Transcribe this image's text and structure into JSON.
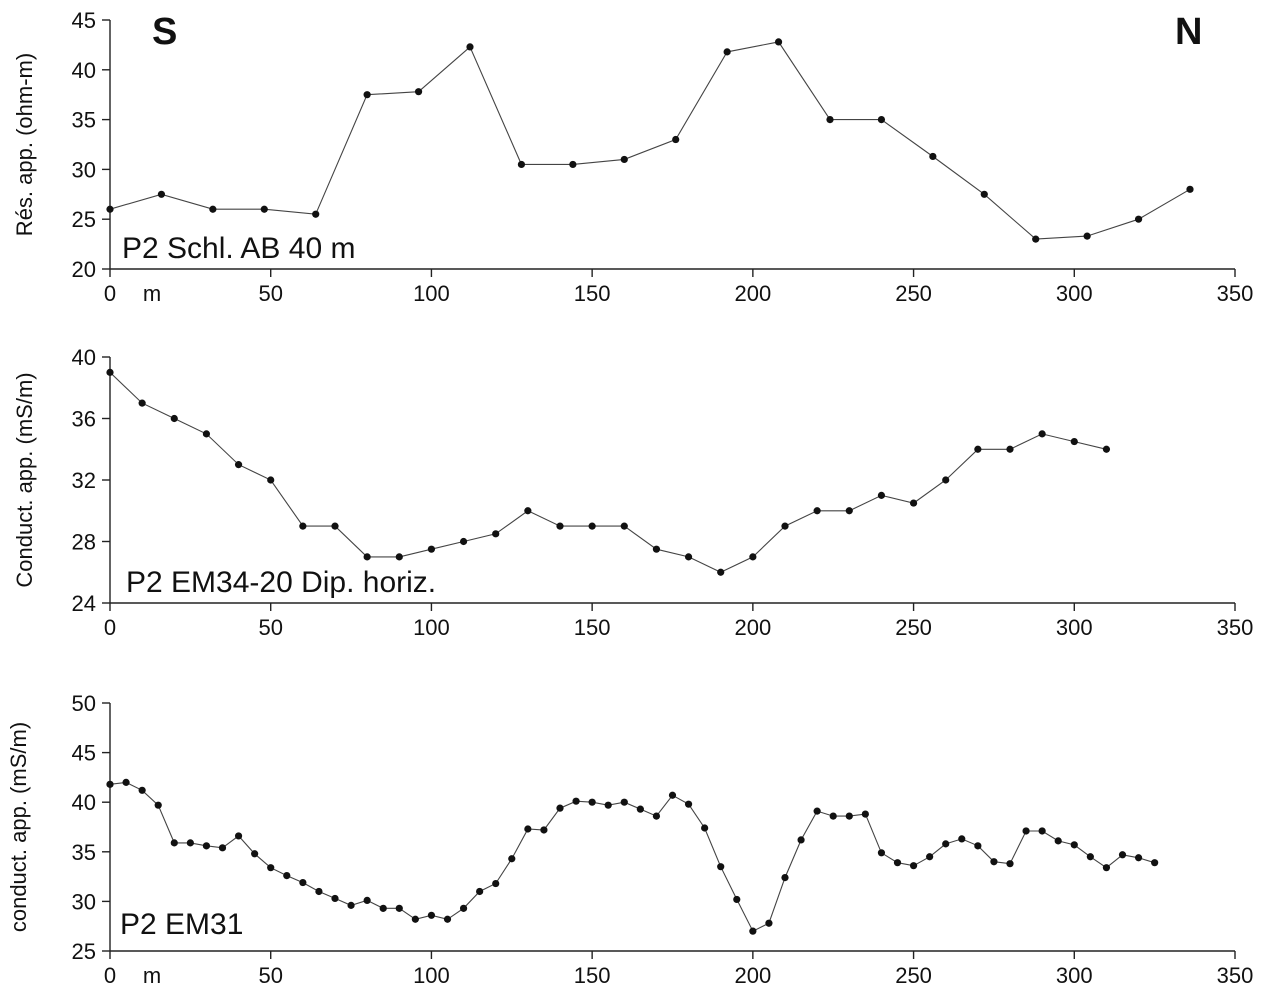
{
  "direction_labels": {
    "left": "S",
    "right": "N"
  },
  "chart_data": [
    {
      "type": "line",
      "title": "",
      "panel_label": "P2 Schl. AB 40 m",
      "xlabel": "",
      "ylabel": "Rés. app. (ohm-m)",
      "x_unit_label": "m",
      "xlim": [
        0,
        350
      ],
      "ylim": [
        20,
        45
      ],
      "xticks": [
        0,
        50,
        100,
        150,
        200,
        250,
        300,
        350
      ],
      "yticks": [
        20,
        25,
        30,
        35,
        40,
        45
      ],
      "grid": false,
      "series": [
        {
          "x": [
            0,
            16,
            32,
            48,
            64,
            80,
            96,
            112,
            128,
            144,
            160,
            176,
            192,
            208,
            224,
            240,
            256,
            272,
            288,
            304,
            320,
            336
          ],
          "y": [
            26,
            27.5,
            26,
            26,
            25.5,
            37.5,
            37.8,
            42.3,
            30.5,
            30.5,
            31,
            33,
            41.8,
            42.8,
            35,
            35,
            31.3,
            27.5,
            23,
            23.3,
            25,
            28
          ]
        }
      ]
    },
    {
      "type": "line",
      "title": "",
      "panel_label": "P2 EM34-20 Dip. horiz.",
      "xlabel": "",
      "ylabel": "Conduct. app. (mS/m)",
      "x_unit_label": "",
      "xlim": [
        0,
        350
      ],
      "ylim": [
        24,
        40
      ],
      "xticks": [
        0,
        50,
        100,
        150,
        200,
        250,
        300,
        350
      ],
      "yticks": [
        24,
        28,
        32,
        36,
        40
      ],
      "grid": false,
      "series": [
        {
          "x": [
            0,
            10,
            20,
            30,
            40,
            50,
            60,
            70,
            80,
            90,
            100,
            110,
            120,
            130,
            140,
            150,
            160,
            170,
            180,
            190,
            200,
            210,
            220,
            230,
            240,
            250,
            260,
            270,
            280,
            290,
            300,
            310
          ],
          "y": [
            39,
            37,
            36,
            35,
            33,
            32,
            29,
            29,
            27,
            27,
            27.5,
            28,
            28.5,
            30,
            29,
            29,
            29,
            27.5,
            27,
            26,
            27,
            29,
            30,
            30,
            31,
            30.5,
            32,
            34,
            34,
            35,
            34.5,
            34
          ]
        }
      ]
    },
    {
      "type": "line",
      "title": "",
      "panel_label": "P2 EM31",
      "xlabel": "",
      "ylabel": "conduct. app. (mS/m)",
      "x_unit_label": "m",
      "xlim": [
        0,
        350
      ],
      "ylim": [
        25,
        50
      ],
      "xticks": [
        0,
        50,
        100,
        150,
        200,
        250,
        300,
        350
      ],
      "yticks": [
        25,
        30,
        35,
        40,
        45,
        50
      ],
      "grid": false,
      "series": [
        {
          "x": [
            0,
            5,
            10,
            15,
            20,
            25,
            30,
            35,
            40,
            45,
            50,
            55,
            60,
            65,
            70,
            75,
            80,
            85,
            90,
            95,
            100,
            105,
            110,
            115,
            120,
            125,
            130,
            135,
            140,
            145,
            150,
            155,
            160,
            165,
            170,
            175,
            180,
            185,
            190,
            195,
            200,
            205,
            210,
            215,
            220,
            225,
            230,
            235,
            240,
            245,
            250,
            255,
            260,
            265,
            270,
            275,
            280,
            285,
            290,
            295,
            300,
            305,
            310,
            315,
            320,
            325
          ],
          "y": [
            41.8,
            42,
            41.2,
            39.7,
            35.9,
            35.9,
            35.6,
            35.4,
            36.6,
            34.8,
            33.4,
            32.6,
            31.9,
            31,
            30.3,
            29.6,
            30.1,
            29.3,
            29.3,
            28.2,
            28.6,
            28.2,
            29.3,
            31,
            31.8,
            34.3,
            37.3,
            37.2,
            39.4,
            40.1,
            40,
            39.7,
            40,
            39.3,
            38.6,
            40.7,
            39.8,
            37.4,
            33.5,
            30.2,
            27,
            27.8,
            32.4,
            36.2,
            39.1,
            38.6,
            38.6,
            38.8,
            34.9,
            33.9,
            33.6,
            34.5,
            35.8,
            36.3,
            35.6,
            34,
            33.8,
            37.1,
            37.1,
            36.1,
            35.7,
            34.5,
            33.4,
            34.7,
            34.4,
            33.9
          ]
        }
      ]
    }
  ]
}
